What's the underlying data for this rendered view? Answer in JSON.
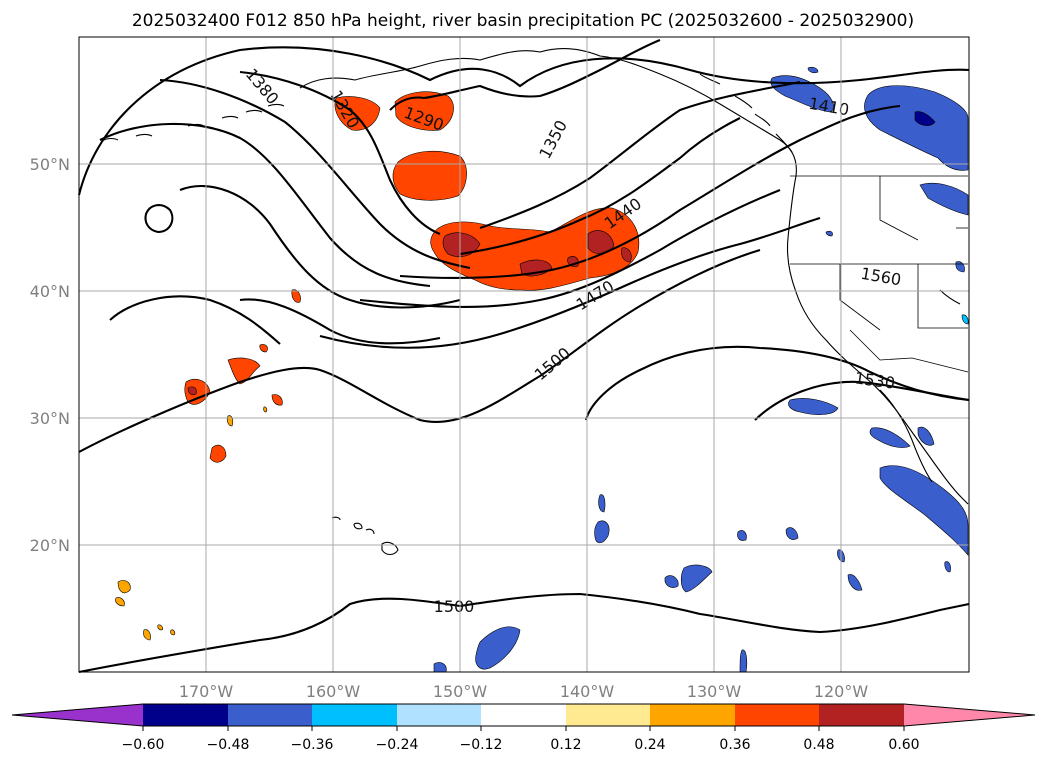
{
  "title": "2025032400 F012 850 hPa height, river basin precipitation PC (2025032600 - 2025032900)",
  "chart_data": {
    "type": "map",
    "projection": "lat-lon",
    "lon_range": [
      -180,
      -110
    ],
    "lat_range": [
      10,
      60
    ],
    "grid": true,
    "lat_labels": [
      "20°N",
      "30°N",
      "40°N",
      "50°N"
    ],
    "lon_labels": [
      "170°W",
      "160°W",
      "150°W",
      "140°W",
      "130°W",
      "120°W"
    ],
    "contour_labels": [
      "1380",
      "1320",
      "1290",
      "1350",
      "1410",
      "1440",
      "1470",
      "1500",
      "1560",
      "1530",
      "1500"
    ],
    "colorbar": {
      "ticks": [
        "−0.60",
        "−0.48",
        "−0.36",
        "−0.24",
        "−0.12",
        "0.12",
        "0.24",
        "0.36",
        "0.48",
        "0.60"
      ],
      "colors": [
        "#9932CC",
        "#00008B",
        "#3A5FCD",
        "#00BFFF",
        "#B0E2FF",
        "#FFFFFF",
        "#FFE991",
        "#FFA500",
        "#FF4500",
        "#B22222",
        "#FF88AA"
      ]
    }
  }
}
